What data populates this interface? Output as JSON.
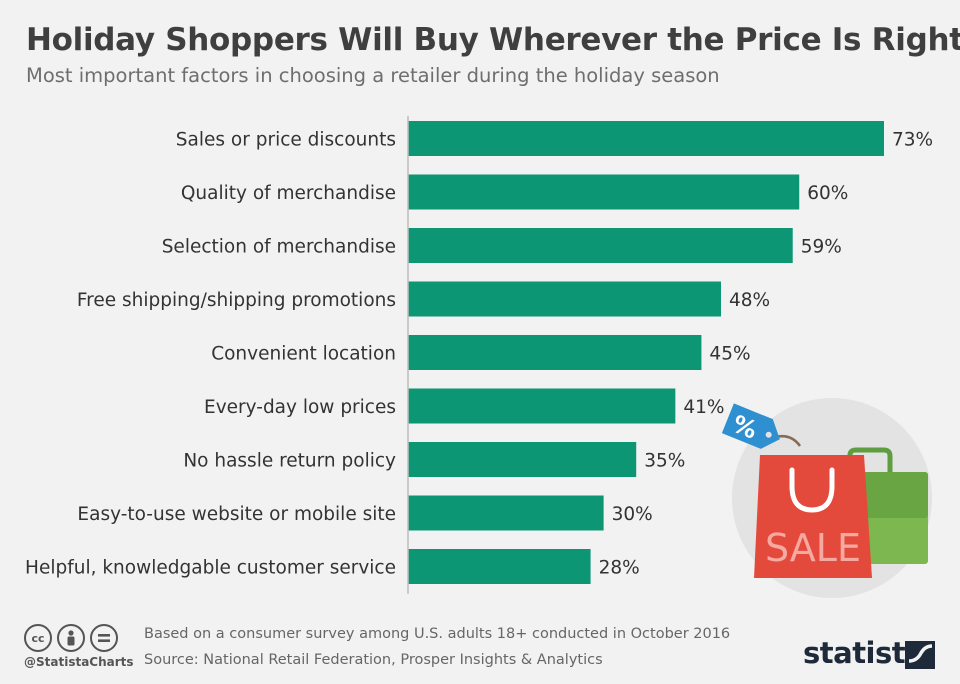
{
  "header": {
    "title": "Holiday Shoppers Will Buy Wherever the Price Is Right",
    "subtitle": "Most important factors in choosing a retailer during the holiday season"
  },
  "colors": {
    "bar": "#0c9674",
    "axis": "#bdbdbd",
    "background": "#f2f2f2"
  },
  "chart_data": {
    "type": "bar",
    "orientation": "horizontal",
    "categories": [
      "Sales or price discounts",
      "Quality of merchandise",
      "Selection of merchandise",
      "Free shipping/shipping promotions",
      "Convenient location",
      "Every-day low prices",
      "No hassle return policy",
      "Easy-to-use website or mobile site",
      "Helpful, knowledgable customer service"
    ],
    "values": [
      73,
      60,
      59,
      48,
      45,
      41,
      35,
      30,
      28
    ],
    "value_labels": [
      "73%",
      "60%",
      "59%",
      "48%",
      "45%",
      "41%",
      "35%",
      "30%",
      "28%"
    ],
    "unit": "%",
    "xlim": [
      0,
      73
    ],
    "grid": false,
    "legend": "none"
  },
  "illustration": {
    "tag_symbol": "%",
    "bag_text": "SALE"
  },
  "footer": {
    "note": "Based on a consumer survey among U.S. adults 18+ conducted in October 2016",
    "source": "Source: National Retail Federation, Prosper Insights & Analytics",
    "handle": "@StatistaCharts",
    "brand": "statista",
    "license_icons": [
      "cc-icon",
      "by-icon",
      "nd-icon"
    ]
  }
}
